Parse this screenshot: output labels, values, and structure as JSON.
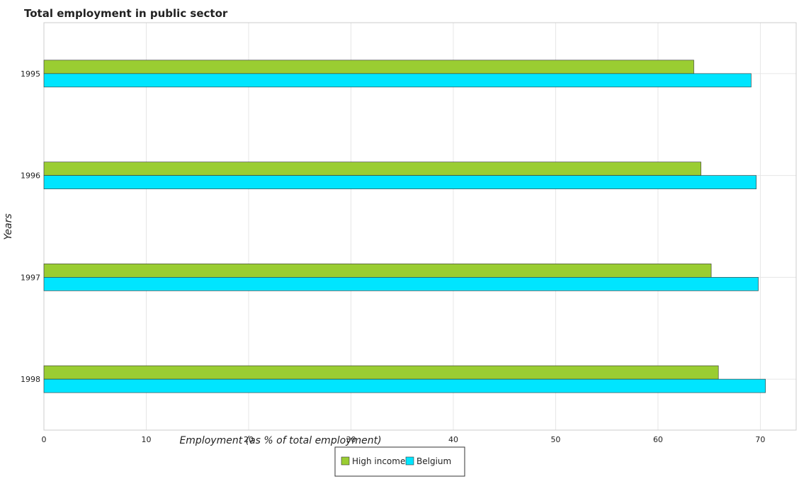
{
  "chart_data": {
    "type": "bar",
    "orientation": "horizontal",
    "title": "Total employment in public sector",
    "xlabel": "Employment (as % of total employment)",
    "ylabel": "Years",
    "categories": [
      "1995",
      "1996",
      "1997",
      "1998"
    ],
    "series": [
      {
        "name": "High income",
        "color": "#9acd32",
        "values": [
          63.5,
          64.2,
          65.2,
          65.9
        ]
      },
      {
        "name": "Belgium",
        "color": "#00e5ff",
        "values": [
          69.1,
          69.6,
          69.8,
          70.5
        ]
      }
    ],
    "xlim": [
      0,
      73.5
    ],
    "xticks": [
      0,
      10,
      20,
      30,
      40,
      50,
      60,
      70
    ],
    "grid": true,
    "legend_position": "bottom-center"
  }
}
